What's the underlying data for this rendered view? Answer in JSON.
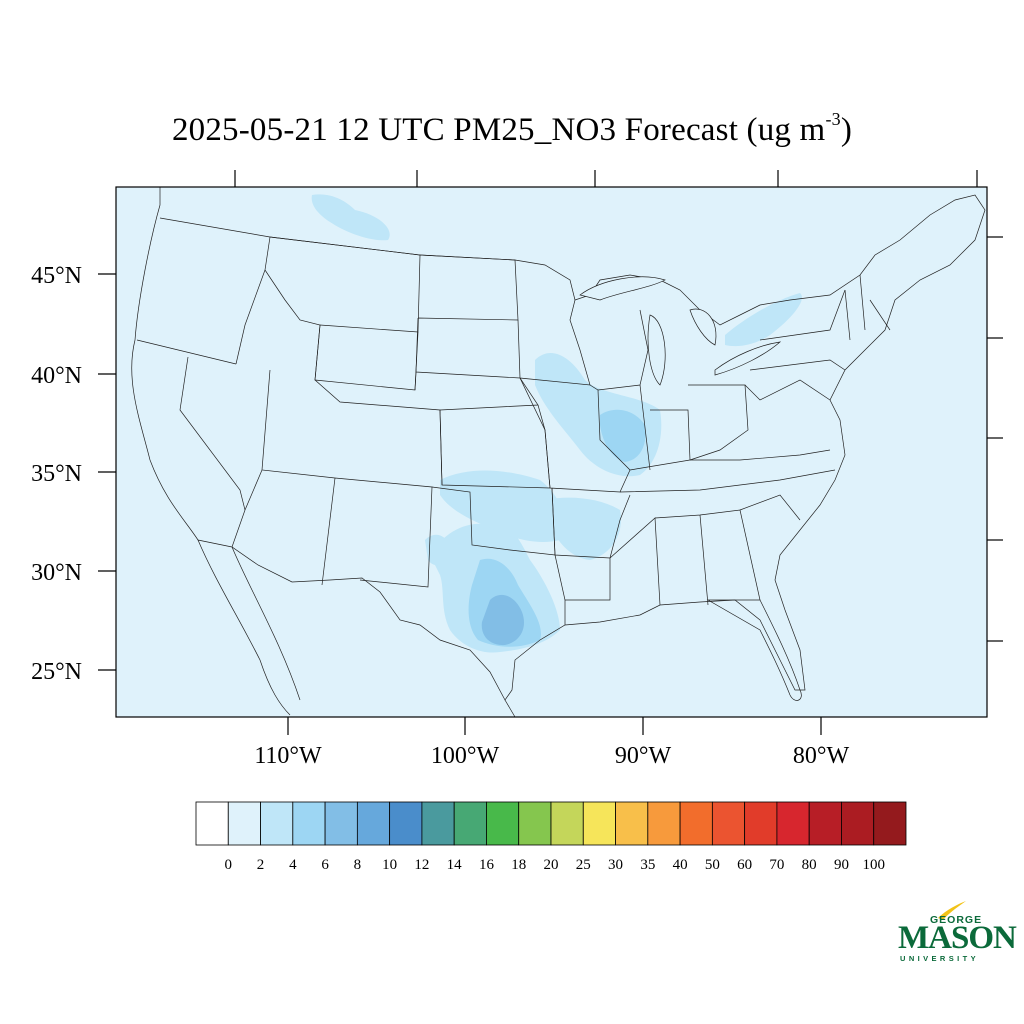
{
  "title": {
    "main": "2025-05-21 12 UTC PM25_NO3 Forecast (ug m",
    "sup": "-3",
    "close": ")"
  },
  "map": {
    "background_color": "#dff2fb",
    "lat_labels": [
      "45°N",
      "40°N",
      "35°N",
      "30°N",
      "25°N"
    ],
    "lon_labels": [
      "110°W",
      "100°W",
      "90°W",
      "80°W"
    ],
    "region": "Contiguous United States"
  },
  "colorbar": {
    "labels": [
      "0",
      "2",
      "4",
      "6",
      "8",
      "10",
      "12",
      "14",
      "16",
      "18",
      "20",
      "25",
      "30",
      "35",
      "40",
      "50",
      "60",
      "70",
      "80",
      "90",
      "100"
    ],
    "colors": [
      "#ffffff",
      "#dff2fb",
      "#bfe6f8",
      "#9dd6f3",
      "#82bee6",
      "#66a8dc",
      "#4a8dcb",
      "#4a9a9e",
      "#47a874",
      "#48b94a",
      "#85c64e",
      "#c4d65a",
      "#f6e55a",
      "#f8bf4a",
      "#f79a3c",
      "#f26d2c",
      "#eb5430",
      "#e13c2a",
      "#d7262e",
      "#b71e26",
      "#ab1c22",
      "#941a1d"
    ]
  },
  "logo": {
    "line1": "GEORGE",
    "line2": "MASON",
    "line3": "UNIVERSITY",
    "color": "#0b6a3a",
    "accent": "#f2c318"
  }
}
